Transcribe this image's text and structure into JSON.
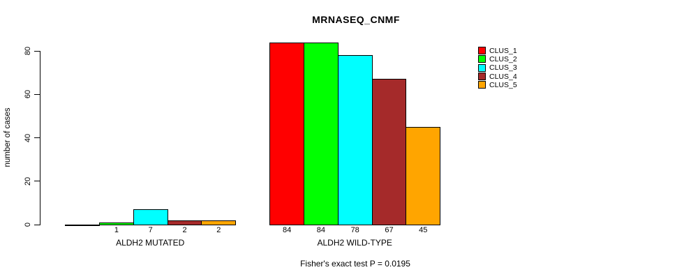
{
  "chart_data": {
    "type": "bar",
    "title": "MRNASEQ_CNMF",
    "xlabel": "",
    "ylabel": "number of cases",
    "ylim": [
      0,
      80
    ],
    "yticks": [
      0,
      20,
      40,
      60,
      80
    ],
    "grid": false,
    "legend_position": "top-right",
    "categories": [
      "ALDH2 MUTATED",
      "ALDH2 WILD-TYPE"
    ],
    "series": [
      {
        "name": "CLUS_1",
        "color": "#FF0000",
        "values": [
          0,
          84
        ]
      },
      {
        "name": "CLUS_2",
        "color": "#00FF00",
        "values": [
          1,
          84
        ]
      },
      {
        "name": "CLUS_3",
        "color": "#00FFFF",
        "values": [
          7,
          78
        ]
      },
      {
        "name": "CLUS_4",
        "color": "#A52A2A",
        "values": [
          2,
          67
        ]
      },
      {
        "name": "CLUS_5",
        "color": "#FFA500",
        "values": [
          2,
          45
        ]
      }
    ],
    "bar_value_labels_shown": [
      1,
      7,
      2,
      2,
      84,
      84,
      78,
      67,
      45
    ],
    "zero_bars_unlabeled": true,
    "annotation": "Fisher's exact test P = 0.0195",
    "colors": {
      "axis": "#000000",
      "bar_border": "#000000",
      "background": "#FFFFFF"
    }
  }
}
